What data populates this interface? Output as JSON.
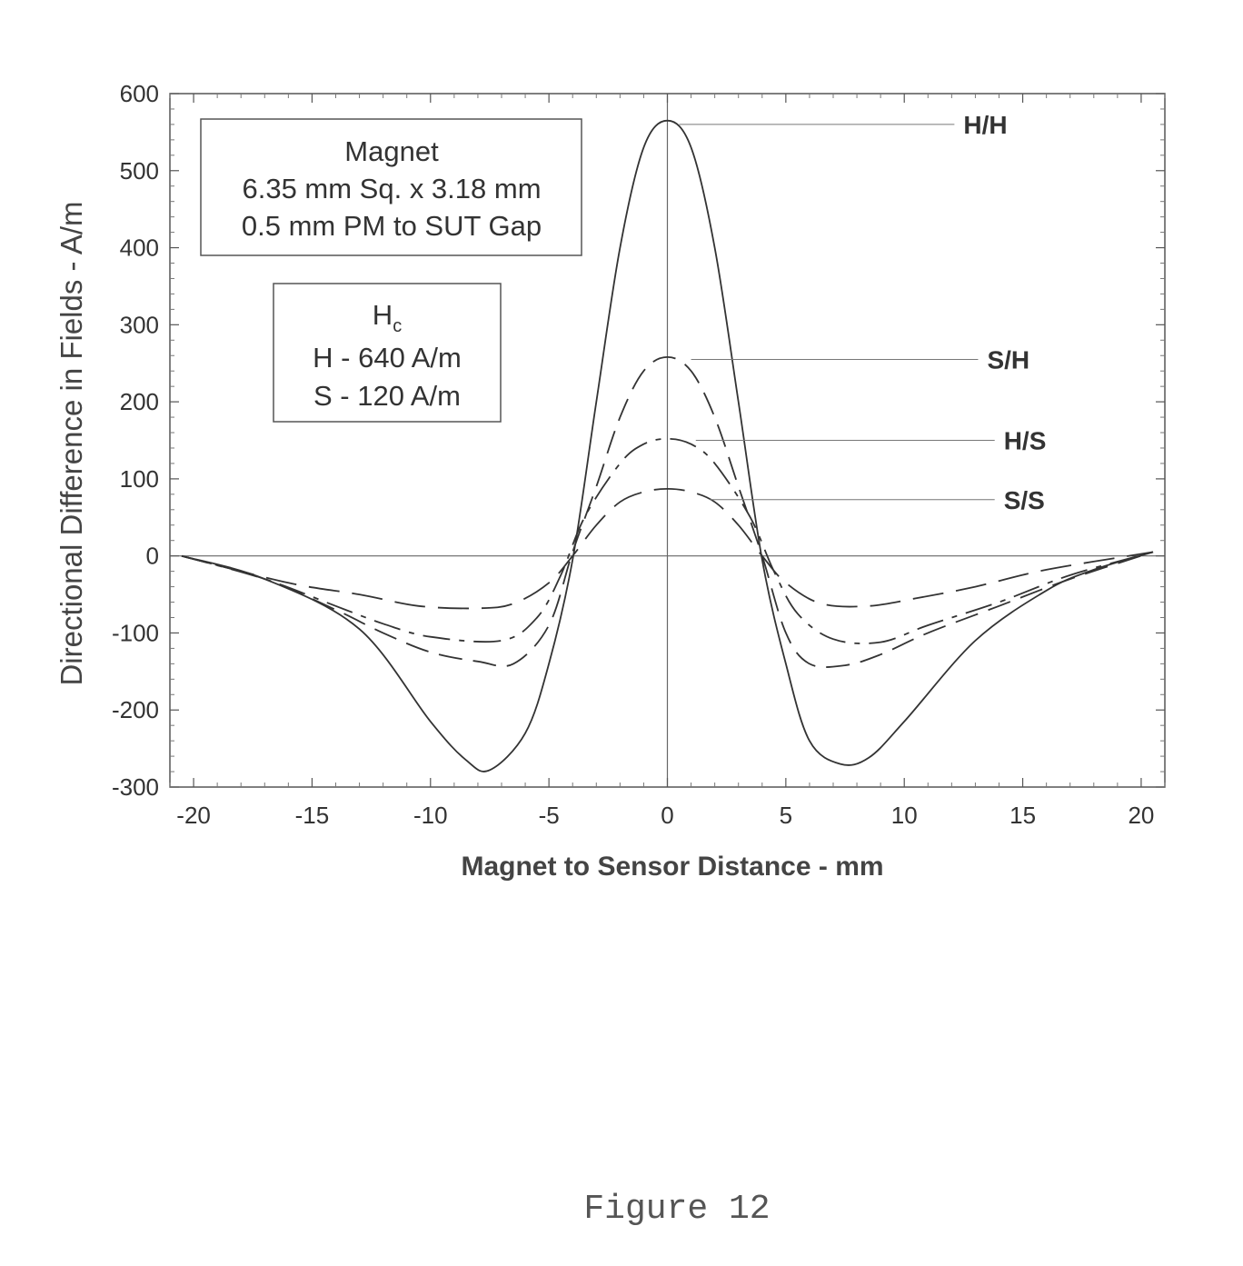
{
  "chart_data": {
    "type": "line",
    "xlabel": "Magnet to Sensor Distance - mm",
    "ylabel": "Directional Difference in Fields - A/m",
    "xlim": [
      -21,
      21
    ],
    "ylim": [
      -300,
      600
    ],
    "xticks": [
      "-20",
      "-15",
      "-10",
      "-5",
      "0",
      "5",
      "10",
      "15",
      "20"
    ],
    "yticks": [
      "600",
      "500",
      "400",
      "300",
      "200",
      "100",
      "0",
      "-100",
      "-200",
      "-300"
    ],
    "grid": false,
    "annotations": {
      "magnet_box": [
        "Magnet",
        "6.35 mm Sq. x 3.18 mm",
        "0.5 mm PM to SUT Gap"
      ],
      "hc_box": {
        "title_main": "H",
        "title_sub": "c",
        "lines": [
          "H - 640 A/m",
          "S - 120 A/m"
        ]
      }
    },
    "series": [
      {
        "name": "H/H",
        "style": "solid",
        "x": [
          -20.5,
          -17,
          -13,
          -10,
          -8.5,
          -7.5,
          -6,
          -5,
          -4,
          -3,
          -2,
          -1,
          0,
          1,
          2,
          3,
          4,
          5,
          6,
          7.3,
          8.5,
          10,
          13,
          16,
          18,
          20.5
        ],
        "y": [
          0,
          -30,
          -95,
          -215,
          -265,
          -278,
          -230,
          -140,
          -5,
          200,
          400,
          530,
          565,
          530,
          400,
          200,
          -5,
          -140,
          -240,
          -270,
          -262,
          -215,
          -110,
          -45,
          -18,
          5
        ]
      },
      {
        "name": "S/H",
        "style": "dashed",
        "x": [
          -20.5,
          -17,
          -14,
          -12,
          -10,
          -8,
          -6.5,
          -5,
          -4,
          -3,
          -2,
          -1,
          0,
          1,
          2,
          3,
          4,
          5,
          6,
          7.5,
          9,
          11,
          14,
          17,
          20.5
        ],
        "y": [
          0,
          -30,
          -70,
          -100,
          -125,
          -137,
          -140,
          -90,
          5,
          90,
          180,
          240,
          258,
          240,
          180,
          90,
          0,
          -100,
          -140,
          -142,
          -128,
          -100,
          -65,
          -30,
          5
        ]
      },
      {
        "name": "H/S",
        "style": "dashed",
        "x": [
          -20.5,
          -17,
          -14,
          -12,
          -10,
          -7,
          -5.5,
          -4.5,
          -3.5,
          -2,
          -1,
          0,
          1,
          2,
          3.5,
          4.5,
          5.5,
          7,
          9,
          11,
          14,
          17,
          20.5
        ],
        "y": [
          0,
          -30,
          -65,
          -88,
          -105,
          -110,
          -80,
          -25,
          50,
          120,
          145,
          152,
          145,
          120,
          50,
          -20,
          -75,
          -108,
          -112,
          -90,
          -60,
          -25,
          5
        ]
      },
      {
        "name": "S/S",
        "style": "dashed",
        "x": [
          -20.5,
          -16,
          -13,
          -10.5,
          -8,
          -6.5,
          -5,
          -4,
          -3,
          -2,
          -1,
          0,
          1,
          2,
          3,
          4,
          5,
          6.5,
          8.5,
          10.5,
          13,
          16,
          20.5
        ],
        "y": [
          0,
          -35,
          -50,
          -65,
          -68,
          -62,
          -35,
          0,
          40,
          70,
          83,
          87,
          83,
          70,
          40,
          0,
          -35,
          -62,
          -65,
          -55,
          -40,
          -18,
          5
        ]
      }
    ]
  },
  "caption": "Figure 12"
}
